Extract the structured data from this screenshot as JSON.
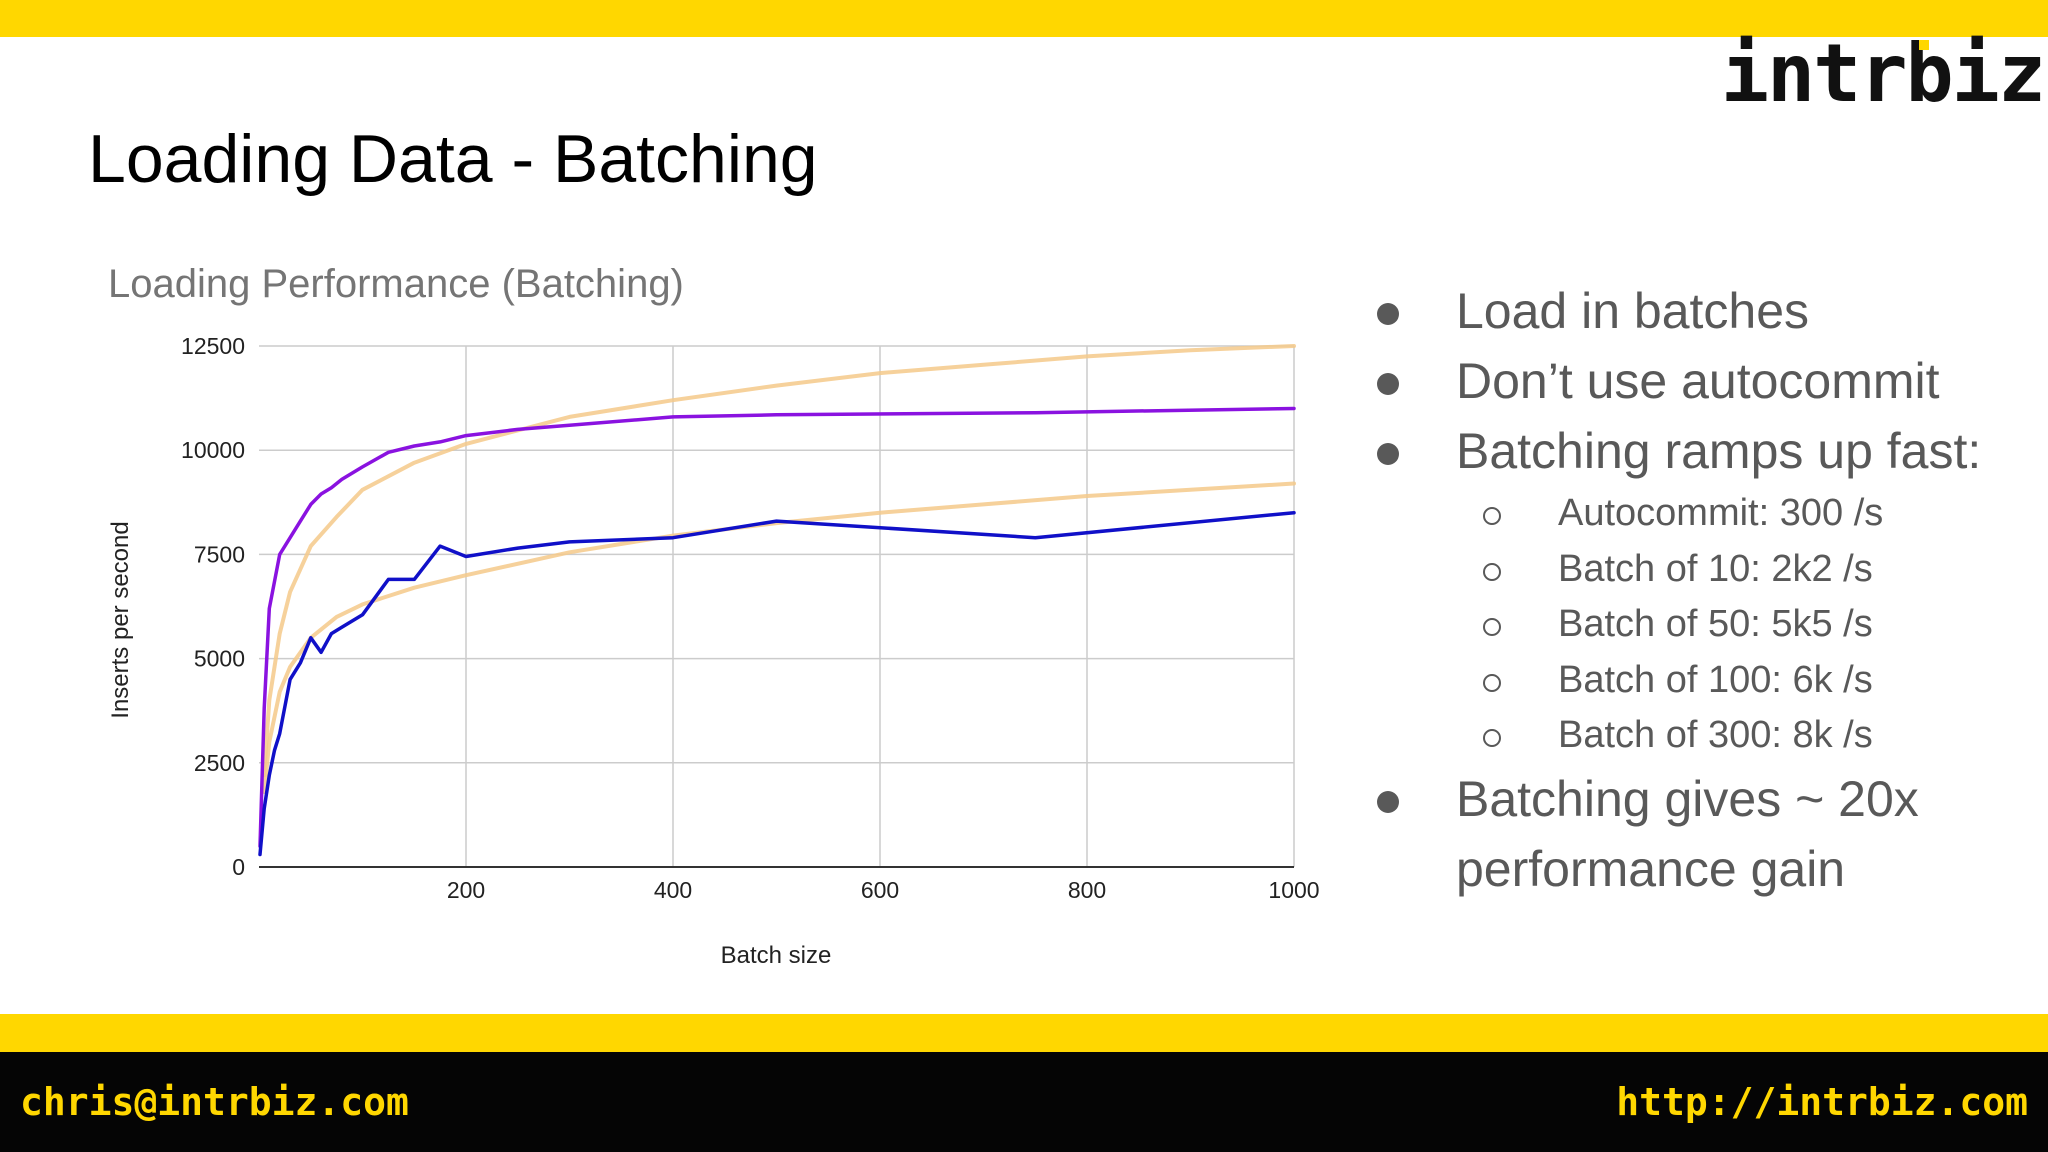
{
  "slide": {
    "title": "Loading Data - Batching",
    "logo": "intrbiz"
  },
  "footer": {
    "email": "chris@intrbiz.com",
    "url": "http://intrbiz.com"
  },
  "bullets": {
    "item1": "Load in batches",
    "item2": "Don’t use autocommit",
    "item3": "Batching ramps up fast:",
    "sub": [
      "Autocommit: 300 /s",
      "Batch of 10: 2k2 /s",
      "Batch of 50: 5k5 /s",
      "Batch of 100: 6k /s",
      "Batch of 300: 8k /s"
    ],
    "item4": "Batching gives ~ 20x performance gain"
  },
  "colors": {
    "accent": "#ffd700",
    "series_purple": "#8a12e0",
    "series_blue": "#1010c8",
    "trendline": "#f5c98a"
  },
  "chart_data": {
    "type": "line",
    "title": "Loading Performance (Batching)",
    "xlabel": "Batch size",
    "ylabel": "Inserts per second",
    "xlim": [
      0,
      1000
    ],
    "ylim": [
      0,
      12500
    ],
    "x_ticks": [
      "200",
      "400",
      "600",
      "800",
      "1000"
    ],
    "y_ticks": [
      "0",
      "2500",
      "5000",
      "7500",
      "10000",
      "12500"
    ],
    "grid": true,
    "legend": "none",
    "series": [
      {
        "color": "#8a12e0",
        "x": [
          1,
          5,
          10,
          20,
          30,
          40,
          50,
          60,
          70,
          80,
          100,
          125,
          150,
          175,
          200,
          250,
          300,
          400,
          500,
          750,
          1000
        ],
        "y": [
          500,
          3800,
          6200,
          7500,
          7900,
          8300,
          8700,
          8950,
          9100,
          9300,
          9600,
          9950,
          10100,
          10200,
          10350,
          10500,
          10600,
          10800,
          10850,
          10900,
          11000
        ]
      },
      {
        "color": "#1010c8",
        "x": [
          1,
          5,
          10,
          15,
          20,
          30,
          40,
          50,
          60,
          70,
          80,
          100,
          125,
          150,
          175,
          200,
          250,
          300,
          400,
          500,
          750,
          1000
        ],
        "y": [
          300,
          1400,
          2200,
          2800,
          3200,
          4500,
          4900,
          5500,
          5150,
          5600,
          5750,
          6050,
          6900,
          6900,
          7700,
          7450,
          7650,
          7800,
          7900,
          8300,
          7900,
          8500
        ]
      },
      {
        "color": "#f5c98a",
        "trendline": true,
        "x": [
          5,
          10,
          20,
          30,
          50,
          75,
          100,
          150,
          200,
          300,
          400,
          500,
          600,
          700,
          800,
          900,
          1000
        ],
        "y": [
          2200,
          4000,
          5600,
          6600,
          7700,
          8400,
          9050,
          9700,
          10150,
          10800,
          11200,
          11550,
          11850,
          12050,
          12250,
          12400,
          12500
        ]
      },
      {
        "color": "#f5c98a",
        "trendline": true,
        "x": [
          5,
          10,
          20,
          30,
          50,
          75,
          100,
          150,
          200,
          300,
          400,
          500,
          600,
          700,
          800,
          900,
          1000
        ],
        "y": [
          1800,
          3000,
          4200,
          4800,
          5500,
          6000,
          6300,
          6700,
          7000,
          7550,
          7950,
          8250,
          8500,
          8700,
          8900,
          9050,
          9200
        ]
      }
    ]
  }
}
